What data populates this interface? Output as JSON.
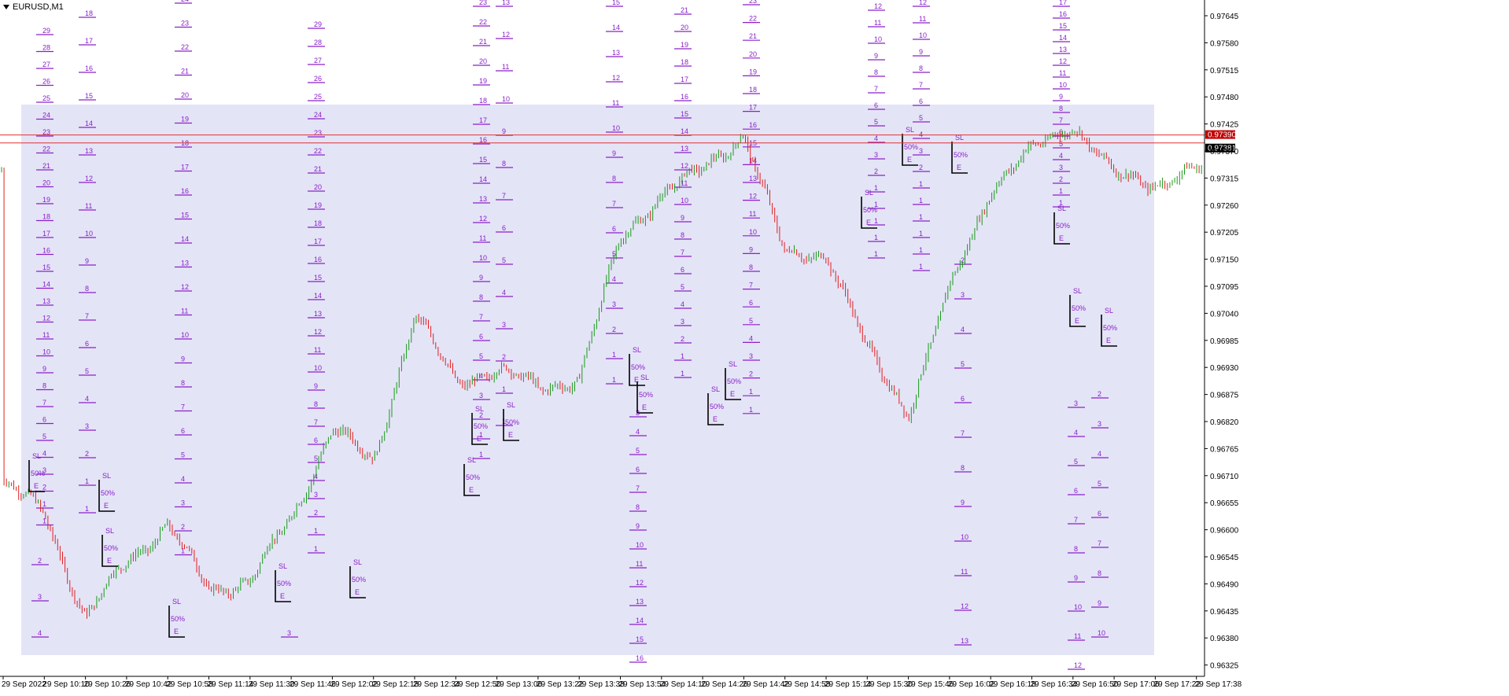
{
  "window": {
    "title": "EURUSD,M1"
  },
  "colors": {
    "background": "#ffffff",
    "up_candle": "#1a9a1a",
    "down_candle": "#e02020",
    "shaded_zone": "#e4e4f7",
    "level_color": "#8a20c8",
    "box_color": "#000000",
    "hline": "#e03030",
    "price_label_bg": "#c00000",
    "axis": "#000000"
  },
  "chart_data": {
    "type": "line",
    "symbol": "EURUSD",
    "timeframe": "M1",
    "y_ticks": [
      "0.97645",
      "0.97580",
      "0.97515",
      "0.97480",
      "0.97425",
      "0.97370",
      "0.97315",
      "0.97260",
      "0.97205",
      "0.97150",
      "0.97095",
      "0.97040",
      "0.96985",
      "0.96930",
      "0.96875",
      "0.96820",
      "0.96765",
      "0.96710",
      "0.96655",
      "0.96600",
      "0.96545",
      "0.96490",
      "0.96435",
      "0.96380",
      "0.96325"
    ],
    "ylim": [
      0.9631,
      0.97665
    ],
    "x_ticks": [
      "29 Sep 2022",
      "29 Sep 10:10",
      "29 Sep 10:26",
      "29 Sep 10:42",
      "29 Sep 10:58",
      "29 Sep 11:14",
      "29 Sep 11:30",
      "29 Sep 11:46",
      "29 Sep 12:02",
      "29 Sep 12:18",
      "29 Sep 12:34",
      "29 Sep 12:50",
      "29 Sep 13:06",
      "29 Sep 13:22",
      "29 Sep 13:38",
      "29 Sep 13:54",
      "29 Sep 14:10",
      "29 Sep 14:26",
      "29 Sep 14:42",
      "29 Sep 14:58",
      "29 Sep 15:14",
      "29 Sep 15:30",
      "29 Sep 15:46",
      "29 Sep 16:02",
      "29 Sep 16:18",
      "29 Sep 16:34",
      "29 Sep 16:50",
      "29 Sep 17:06",
      "29 Sep 17:22",
      "29 Sep 17:38"
    ],
    "price_series": [
      {
        "t": "29 Sep 2022",
        "p": 0.9669
      },
      {
        "t": "29 Sep 10:10",
        "p": 0.9664
      },
      {
        "t": "29 Sep 10:26",
        "p": 0.9642
      },
      {
        "t": "29 Sep 10:42",
        "p": 0.9654
      },
      {
        "t": "29 Sep 10:58",
        "p": 0.9661
      },
      {
        "t": "29 Sep 11:14",
        "p": 0.9648
      },
      {
        "t": "29 Sep 11:30",
        "p": 0.965
      },
      {
        "t": "29 Sep 11:46",
        "p": 0.9662
      },
      {
        "t": "29 Sep 12:02",
        "p": 0.9681
      },
      {
        "t": "29 Sep 12:18",
        "p": 0.9673
      },
      {
        "t": "29 Sep 12:34",
        "p": 0.9704
      },
      {
        "t": "29 Sep 12:50",
        "p": 0.9689
      },
      {
        "t": "29 Sep 13:06",
        "p": 0.9693
      },
      {
        "t": "29 Sep 13:22",
        "p": 0.9688
      },
      {
        "t": "29 Sep 13:38",
        "p": 0.9691
      },
      {
        "t": "29 Sep 13:54",
        "p": 0.9718
      },
      {
        "t": "29 Sep 14:10",
        "p": 0.9728
      },
      {
        "t": "29 Sep 14:26",
        "p": 0.9732
      },
      {
        "t": "29 Sep 14:42",
        "p": 0.974
      },
      {
        "t": "29 Sep 14:58",
        "p": 0.9715
      },
      {
        "t": "29 Sep 15:14",
        "p": 0.9716
      },
      {
        "t": "29 Sep 15:30",
        "p": 0.9696
      },
      {
        "t": "29 Sep 15:46",
        "p": 0.9684
      },
      {
        "t": "29 Sep 16:02",
        "p": 0.9708
      },
      {
        "t": "29 Sep 16:18",
        "p": 0.9729
      },
      {
        "t": "29 Sep 16:34",
        "p": 0.9736
      },
      {
        "t": "29 Sep 16:50",
        "p": 0.9742
      },
      {
        "t": "29 Sep 17:06",
        "p": 0.9731
      },
      {
        "t": "29 Sep 17:22",
        "p": 0.973
      },
      {
        "t": "29 Sep 17:38",
        "p": 0.9732
      }
    ],
    "horizontal_lines": [
      0.97394,
      0.97378
    ],
    "price_labels": {
      "upper": "0.97390",
      "current": "0.97381"
    },
    "annotations": {
      "sl": "SL",
      "entry": "E",
      "fifty": "50%"
    },
    "grid": false,
    "legend": "none"
  }
}
